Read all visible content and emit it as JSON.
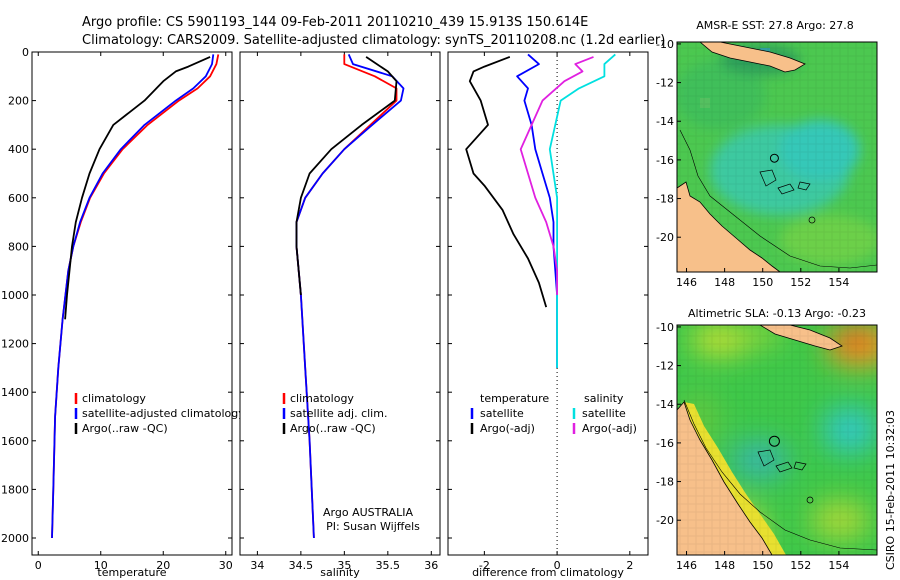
{
  "header": {
    "line1": "Argo profile: CS 5901193_144 09-Feb-2011 20110210_439 15.913S 150.614E",
    "line2": "Climatology: CARS2009. Satellite-adjusted climatology: synTS_20110208.nc (1.2d earlier)"
  },
  "footer": {
    "credit": "CSIRO 15-Feb-2011 10:32:03",
    "float_owner": "Argo AUSTRALIA",
    "pi": "PI: Susan Wijffels"
  },
  "colors": {
    "climatology": "#ff0000",
    "satellite": "#0000ff",
    "argo": "#000000",
    "salinity_satellite": "#00e0e0",
    "salinity_argo": "#e020e0",
    "land": "#f7c08a"
  },
  "chart_data": [
    {
      "id": "temperature",
      "type": "line",
      "xlabel": "temperature",
      "xlim": [
        -1,
        31
      ],
      "ylim": [
        2070,
        0
      ],
      "xticks": [
        0,
        10,
        20,
        30
      ],
      "yticks": [
        0,
        200,
        400,
        600,
        800,
        1000,
        1200,
        1400,
        1600,
        1800,
        2000
      ],
      "y_reversed": true,
      "legend": [
        "climatology",
        "satellite-adjusted climatology",
        "Argo(..raw -QC)"
      ],
      "series": [
        {
          "name": "climatology",
          "color": "#ff0000",
          "x": [
            28.8,
            28.5,
            27.5,
            25.5,
            22.5,
            17.5,
            13.5,
            10.5,
            8.3,
            6.8,
            5.6,
            4.8,
            3.9,
            3.2,
            2.7,
            2.4,
            2.2
          ],
          "y": [
            10,
            50,
            100,
            150,
            200,
            300,
            400,
            500,
            600,
            700,
            800,
            900,
            1100,
            1300,
            1500,
            1800,
            2000
          ]
        },
        {
          "name": "satellite-adjusted climatology",
          "color": "#0000ff",
          "x": [
            28.0,
            27.8,
            26.8,
            24.8,
            22.0,
            17.0,
            13.2,
            10.3,
            8.2,
            6.7,
            5.6,
            4.8,
            3.9,
            3.2,
            2.7,
            2.4,
            2.2
          ],
          "y": [
            10,
            50,
            100,
            150,
            200,
            300,
            400,
            500,
            600,
            700,
            800,
            900,
            1100,
            1300,
            1500,
            1800,
            2000
          ]
        },
        {
          "name": "Argo(..raw -QC)",
          "color": "#000000",
          "x": [
            27.5,
            24.0,
            22.0,
            20.0,
            17.0,
            12.0,
            9.8,
            8.2,
            7.0,
            6.0,
            5.4,
            5.0,
            4.6,
            4.3
          ],
          "y": [
            20,
            60,
            80,
            120,
            200,
            300,
            400,
            500,
            600,
            700,
            800,
            900,
            1000,
            1100
          ]
        }
      ]
    },
    {
      "id": "salinity",
      "type": "line",
      "xlabel": "salinity",
      "xlim": [
        33.8,
        36.1
      ],
      "ylim": [
        2070,
        0
      ],
      "xticks": [
        34,
        34.5,
        35,
        35.5,
        36
      ],
      "y_reversed": true,
      "legend": [
        "climatology",
        "satellite adj. clim.",
        "Argo(..raw -QC)"
      ],
      "series": [
        {
          "name": "climatology",
          "color": "#ff0000",
          "x": [
            35.0,
            35.0,
            35.35,
            35.6,
            35.6,
            35.3,
            35.0,
            34.75,
            34.55,
            34.45,
            34.45,
            34.5,
            34.55,
            34.6,
            34.65
          ],
          "y": [
            10,
            50,
            100,
            150,
            200,
            300,
            400,
            500,
            600,
            700,
            800,
            1000,
            1300,
            1600,
            2000
          ]
        },
        {
          "name": "satellite adj. clim.",
          "color": "#0000ff",
          "x": [
            35.05,
            35.1,
            35.55,
            35.68,
            35.65,
            35.32,
            35.0,
            34.75,
            34.55,
            34.45,
            34.45,
            34.5,
            34.55,
            34.6,
            34.65
          ],
          "y": [
            10,
            50,
            100,
            150,
            200,
            300,
            400,
            500,
            600,
            700,
            800,
            1000,
            1300,
            1600,
            2000
          ]
        },
        {
          "name": "Argo(..raw -QC)",
          "color": "#000000",
          "x": [
            35.25,
            35.5,
            35.6,
            35.58,
            35.2,
            34.85,
            34.6,
            34.5,
            34.45,
            34.45,
            34.5
          ],
          "y": [
            20,
            80,
            120,
            200,
            300,
            400,
            500,
            600,
            700,
            800,
            1000
          ]
        }
      ]
    },
    {
      "id": "difference",
      "type": "line",
      "xlabel": "difference from climatology",
      "xlim": [
        -3,
        2.5
      ],
      "ylim": [
        2070,
        0
      ],
      "xticks": [
        -2,
        0,
        2
      ],
      "y_reversed": true,
      "legend_groups": [
        {
          "label": "temperature",
          "entries": [
            "satellite",
            "Argo(-adj)"
          ]
        },
        {
          "label": "salinity",
          "entries": [
            "satellite",
            "Argo(-adj)"
          ]
        }
      ],
      "series": [
        {
          "name": "temperature satellite",
          "color": "#0000ff",
          "x": [
            -0.8,
            -0.5,
            -1.1,
            -0.8,
            -0.9,
            -0.7,
            -0.6,
            -0.4,
            -0.2,
            -0.1,
            -0.1,
            0.0,
            0.0
          ],
          "y": [
            10,
            50,
            100,
            150,
            200,
            300,
            400,
            500,
            600,
            700,
            800,
            1000,
            1300
          ]
        },
        {
          "name": "temperature Argo(-adj)",
          "color": "#000000",
          "x": [
            -1.3,
            -2.0,
            -2.3,
            -2.4,
            -2.1,
            -1.9,
            -2.5,
            -2.3,
            -2.0,
            -1.5,
            -1.2,
            -0.8,
            -0.5,
            -0.3
          ],
          "y": [
            20,
            60,
            80,
            120,
            200,
            300,
            400,
            500,
            550,
            650,
            750,
            850,
            950,
            1050
          ]
        },
        {
          "name": "salinity satellite",
          "color": "#00e0e0",
          "x": [
            1.6,
            1.3,
            1.3,
            0.6,
            0.1,
            -0.2,
            0.0,
            0.0
          ],
          "y": [
            10,
            50,
            100,
            150,
            200,
            400,
            600,
            1300
          ]
        },
        {
          "name": "salinity Argo(-adj)",
          "color": "#e020e0",
          "x": [
            1.0,
            0.5,
            0.7,
            0.2,
            -0.4,
            -1.0,
            -0.8,
            -0.6,
            -0.3,
            -0.1,
            0.0,
            0.0
          ],
          "y": [
            20,
            50,
            80,
            120,
            200,
            400,
            500,
            600,
            700,
            800,
            900,
            1000
          ]
        }
      ]
    },
    {
      "id": "sst_map",
      "type": "heatmap",
      "title": "AMSR-E SST: 27.8 Argo: 27.8",
      "xlim": [
        145.5,
        156
      ],
      "ylim": [
        -21.8,
        -9.9
      ],
      "xticks": [
        146,
        148,
        150,
        152,
        154
      ],
      "yticks": [
        -10,
        -12,
        -14,
        -16,
        -18,
        -20
      ],
      "argo_position": [
        150.614,
        -15.913
      ]
    },
    {
      "id": "sla_map",
      "type": "heatmap",
      "title": "Altimetric SLA: -0.13 Argo: -0.23",
      "xlim": [
        145.5,
        156
      ],
      "ylim": [
        -21.8,
        -9.9
      ],
      "xticks": [
        146,
        148,
        150,
        152,
        154
      ],
      "yticks": [
        -10,
        -12,
        -14,
        -16,
        -18,
        -20
      ],
      "argo_position": [
        150.614,
        -15.913
      ]
    }
  ]
}
